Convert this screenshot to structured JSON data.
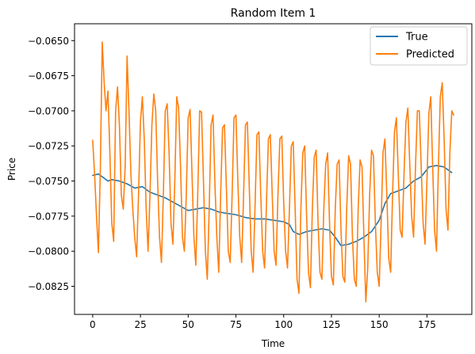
{
  "chart_data": {
    "type": "line",
    "title": "Random Item 1",
    "xlabel": "Time",
    "ylabel": "Price",
    "xlim": [
      -9.5,
      198.5
    ],
    "ylim": [
      -0.0845,
      -0.0638
    ],
    "x_ticks": [
      0,
      25,
      50,
      75,
      100,
      125,
      150,
      175
    ],
    "x_tick_labels": [
      "0",
      "25",
      "50",
      "75",
      "100",
      "125",
      "150",
      "175"
    ],
    "y_ticks": [
      -0.065,
      -0.0675,
      -0.07,
      -0.0725,
      -0.075,
      -0.0775,
      -0.08,
      -0.0825
    ],
    "y_tick_labels": [
      "−0.0650",
      "−0.0675",
      "−0.0700",
      "−0.0725",
      "−0.0750",
      "−0.0775",
      "−0.0800",
      "−0.0825"
    ],
    "grid": false,
    "legend_position": "top-right",
    "series": [
      {
        "name": "True",
        "color": "#1f77b4",
        "points": [
          [
            0,
            -0.0746
          ],
          [
            3,
            -0.0745
          ],
          [
            6,
            -0.0748
          ],
          [
            8,
            -0.075
          ],
          [
            10,
            -0.0749
          ],
          [
            14,
            -0.075
          ],
          [
            18,
            -0.0752
          ],
          [
            22,
            -0.0755
          ],
          [
            26,
            -0.0754
          ],
          [
            30,
            -0.0758
          ],
          [
            34,
            -0.076
          ],
          [
            38,
            -0.0762
          ],
          [
            42,
            -0.0765
          ],
          [
            46,
            -0.0768
          ],
          [
            50,
            -0.0771
          ],
          [
            54,
            -0.077
          ],
          [
            58,
            -0.0769
          ],
          [
            62,
            -0.077
          ],
          [
            66,
            -0.0772
          ],
          [
            70,
            -0.0773
          ],
          [
            75,
            -0.0774
          ],
          [
            80,
            -0.0776
          ],
          [
            85,
            -0.0777
          ],
          [
            90,
            -0.0777
          ],
          [
            95,
            -0.0778
          ],
          [
            100,
            -0.0779
          ],
          [
            103,
            -0.0781
          ],
          [
            105,
            -0.0786
          ],
          [
            108,
            -0.0788
          ],
          [
            112,
            -0.0786
          ],
          [
            116,
            -0.0785
          ],
          [
            120,
            -0.0784
          ],
          [
            124,
            -0.0785
          ],
          [
            127,
            -0.079
          ],
          [
            130,
            -0.0796
          ],
          [
            134,
            -0.0795
          ],
          [
            138,
            -0.0793
          ],
          [
            142,
            -0.079
          ],
          [
            146,
            -0.0786
          ],
          [
            150,
            -0.0778
          ],
          [
            153,
            -0.0766
          ],
          [
            156,
            -0.0759
          ],
          [
            160,
            -0.0757
          ],
          [
            164,
            -0.0755
          ],
          [
            168,
            -0.075
          ],
          [
            172,
            -0.0747
          ],
          [
            176,
            -0.074
          ],
          [
            180,
            -0.0739
          ],
          [
            184,
            -0.074
          ],
          [
            188,
            -0.0744
          ]
        ]
      },
      {
        "name": "Predicted",
        "color": "#ff7f0e",
        "points": [
          [
            0,
            -0.0721
          ],
          [
            1,
            -0.0745
          ],
          [
            2,
            -0.0775
          ],
          [
            3,
            -0.0801
          ],
          [
            4,
            -0.0742
          ],
          [
            5,
            -0.0651
          ],
          [
            6,
            -0.068
          ],
          [
            7,
            -0.07
          ],
          [
            8,
            -0.0686
          ],
          [
            9,
            -0.073
          ],
          [
            10,
            -0.078
          ],
          [
            11,
            -0.0793
          ],
          [
            12,
            -0.07
          ],
          [
            13,
            -0.0683
          ],
          [
            14,
            -0.071
          ],
          [
            15,
            -0.076
          ],
          [
            16,
            -0.077
          ],
          [
            17,
            -0.074
          ],
          [
            18,
            -0.0661
          ],
          [
            19,
            -0.07
          ],
          [
            20,
            -0.0745
          ],
          [
            21,
            -0.077
          ],
          [
            22,
            -0.079
          ],
          [
            23,
            -0.0804
          ],
          [
            24,
            -0.076
          ],
          [
            25,
            -0.0708
          ],
          [
            26,
            -0.069
          ],
          [
            27,
            -0.072
          ],
          [
            28,
            -0.077
          ],
          [
            29,
            -0.08
          ],
          [
            30,
            -0.076
          ],
          [
            31,
            -0.071
          ],
          [
            32,
            -0.0688
          ],
          [
            33,
            -0.07
          ],
          [
            34,
            -0.075
          ],
          [
            35,
            -0.079
          ],
          [
            36,
            -0.0808
          ],
          [
            37,
            -0.076
          ],
          [
            38,
            -0.07
          ],
          [
            39,
            -0.0695
          ],
          [
            40,
            -0.073
          ],
          [
            41,
            -0.078
          ],
          [
            42,
            -0.0795
          ],
          [
            43,
            -0.075
          ],
          [
            44,
            -0.069
          ],
          [
            45,
            -0.0698
          ],
          [
            46,
            -0.074
          ],
          [
            47,
            -0.079
          ],
          [
            48,
            -0.08
          ],
          [
            49,
            -0.076
          ],
          [
            50,
            -0.0705
          ],
          [
            51,
            -0.0699
          ],
          [
            52,
            -0.0745
          ],
          [
            53,
            -0.079
          ],
          [
            54,
            -0.081
          ],
          [
            55,
            -0.076
          ],
          [
            56,
            -0.07
          ],
          [
            57,
            -0.0701
          ],
          [
            58,
            -0.075
          ],
          [
            59,
            -0.08
          ],
          [
            60,
            -0.082
          ],
          [
            61,
            -0.077
          ],
          [
            62,
            -0.071
          ],
          [
            63,
            -0.0703
          ],
          [
            64,
            -0.0752
          ],
          [
            65,
            -0.079
          ],
          [
            66,
            -0.0815
          ],
          [
            67,
            -0.076
          ],
          [
            68,
            -0.0712
          ],
          [
            69,
            -0.071
          ],
          [
            70,
            -0.0755
          ],
          [
            71,
            -0.08
          ],
          [
            72,
            -0.0808
          ],
          [
            73,
            -0.076
          ],
          [
            74,
            -0.0705
          ],
          [
            75,
            -0.0703
          ],
          [
            76,
            -0.075
          ],
          [
            77,
            -0.079
          ],
          [
            78,
            -0.0808
          ],
          [
            79,
            -0.076
          ],
          [
            80,
            -0.071
          ],
          [
            81,
            -0.0708
          ],
          [
            82,
            -0.0755
          ],
          [
            83,
            -0.08
          ],
          [
            84,
            -0.0815
          ],
          [
            85,
            -0.0768
          ],
          [
            86,
            -0.0717
          ],
          [
            87,
            -0.0715
          ],
          [
            88,
            -0.076
          ],
          [
            89,
            -0.08
          ],
          [
            90,
            -0.0812
          ],
          [
            91,
            -0.0765
          ],
          [
            92,
            -0.072
          ],
          [
            93,
            -0.0717
          ],
          [
            94,
            -0.076
          ],
          [
            95,
            -0.08
          ],
          [
            96,
            -0.081
          ],
          [
            97,
            -0.076
          ],
          [
            98,
            -0.072
          ],
          [
            99,
            -0.0718
          ],
          [
            100,
            -0.0765
          ],
          [
            101,
            -0.08
          ],
          [
            102,
            -0.0812
          ],
          [
            103,
            -0.077
          ],
          [
            104,
            -0.0725
          ],
          [
            105,
            -0.0722
          ],
          [
            106,
            -0.077
          ],
          [
            107,
            -0.082
          ],
          [
            108,
            -0.083
          ],
          [
            109,
            -0.077
          ],
          [
            110,
            -0.073
          ],
          [
            111,
            -0.0725
          ],
          [
            112,
            -0.0775
          ],
          [
            113,
            -0.0815
          ],
          [
            114,
            -0.0826
          ],
          [
            115,
            -0.077
          ],
          [
            116,
            -0.0733
          ],
          [
            117,
            -0.0728
          ],
          [
            118,
            -0.078
          ],
          [
            119,
            -0.0815
          ],
          [
            120,
            -0.082
          ],
          [
            121,
            -0.077
          ],
          [
            122,
            -0.0738
          ],
          [
            123,
            -0.073
          ],
          [
            124,
            -0.078
          ],
          [
            125,
            -0.0818
          ],
          [
            126,
            -0.0824
          ],
          [
            127,
            -0.077
          ],
          [
            128,
            -0.0738
          ],
          [
            129,
            -0.0735
          ],
          [
            130,
            -0.0785
          ],
          [
            131,
            -0.0818
          ],
          [
            132,
            -0.0822
          ],
          [
            133,
            -0.077
          ],
          [
            134,
            -0.0732
          ],
          [
            135,
            -0.0738
          ],
          [
            136,
            -0.079
          ],
          [
            137,
            -0.082
          ],
          [
            138,
            -0.0825
          ],
          [
            139,
            -0.077
          ],
          [
            140,
            -0.0735
          ],
          [
            141,
            -0.074
          ],
          [
            142,
            -0.079
          ],
          [
            143,
            -0.0836
          ],
          [
            144,
            -0.0812
          ],
          [
            145,
            -0.076
          ],
          [
            146,
            -0.0728
          ],
          [
            147,
            -0.0732
          ],
          [
            148,
            -0.078
          ],
          [
            149,
            -0.0815
          ],
          [
            150,
            -0.0825
          ],
          [
            151,
            -0.078
          ],
          [
            152,
            -0.073
          ],
          [
            153,
            -0.072
          ],
          [
            154,
            -0.076
          ],
          [
            155,
            -0.0805
          ],
          [
            156,
            -0.0815
          ],
          [
            157,
            -0.076
          ],
          [
            158,
            -0.0715
          ],
          [
            159,
            -0.0705
          ],
          [
            160,
            -0.0745
          ],
          [
            161,
            -0.0785
          ],
          [
            162,
            -0.079
          ],
          [
            163,
            -0.0745
          ],
          [
            164,
            -0.0708
          ],
          [
            165,
            -0.0698
          ],
          [
            166,
            -0.0738
          ],
          [
            167,
            -0.0775
          ],
          [
            168,
            -0.079
          ],
          [
            169,
            -0.074
          ],
          [
            170,
            -0.07
          ],
          [
            171,
            -0.07
          ],
          [
            172,
            -0.074
          ],
          [
            173,
            -0.078
          ],
          [
            174,
            -0.0795
          ],
          [
            175,
            -0.075
          ],
          [
            176,
            -0.0702
          ],
          [
            177,
            -0.069
          ],
          [
            178,
            -0.074
          ],
          [
            179,
            -0.0785
          ],
          [
            180,
            -0.08
          ],
          [
            181,
            -0.074
          ],
          [
            182,
            -0.069
          ],
          [
            183,
            -0.068
          ],
          [
            184,
            -0.072
          ],
          [
            185,
            -0.077
          ],
          [
            186,
            -0.0785
          ],
          [
            187,
            -0.073
          ],
          [
            188,
            -0.07
          ],
          [
            189,
            -0.0703
          ]
        ]
      }
    ]
  }
}
